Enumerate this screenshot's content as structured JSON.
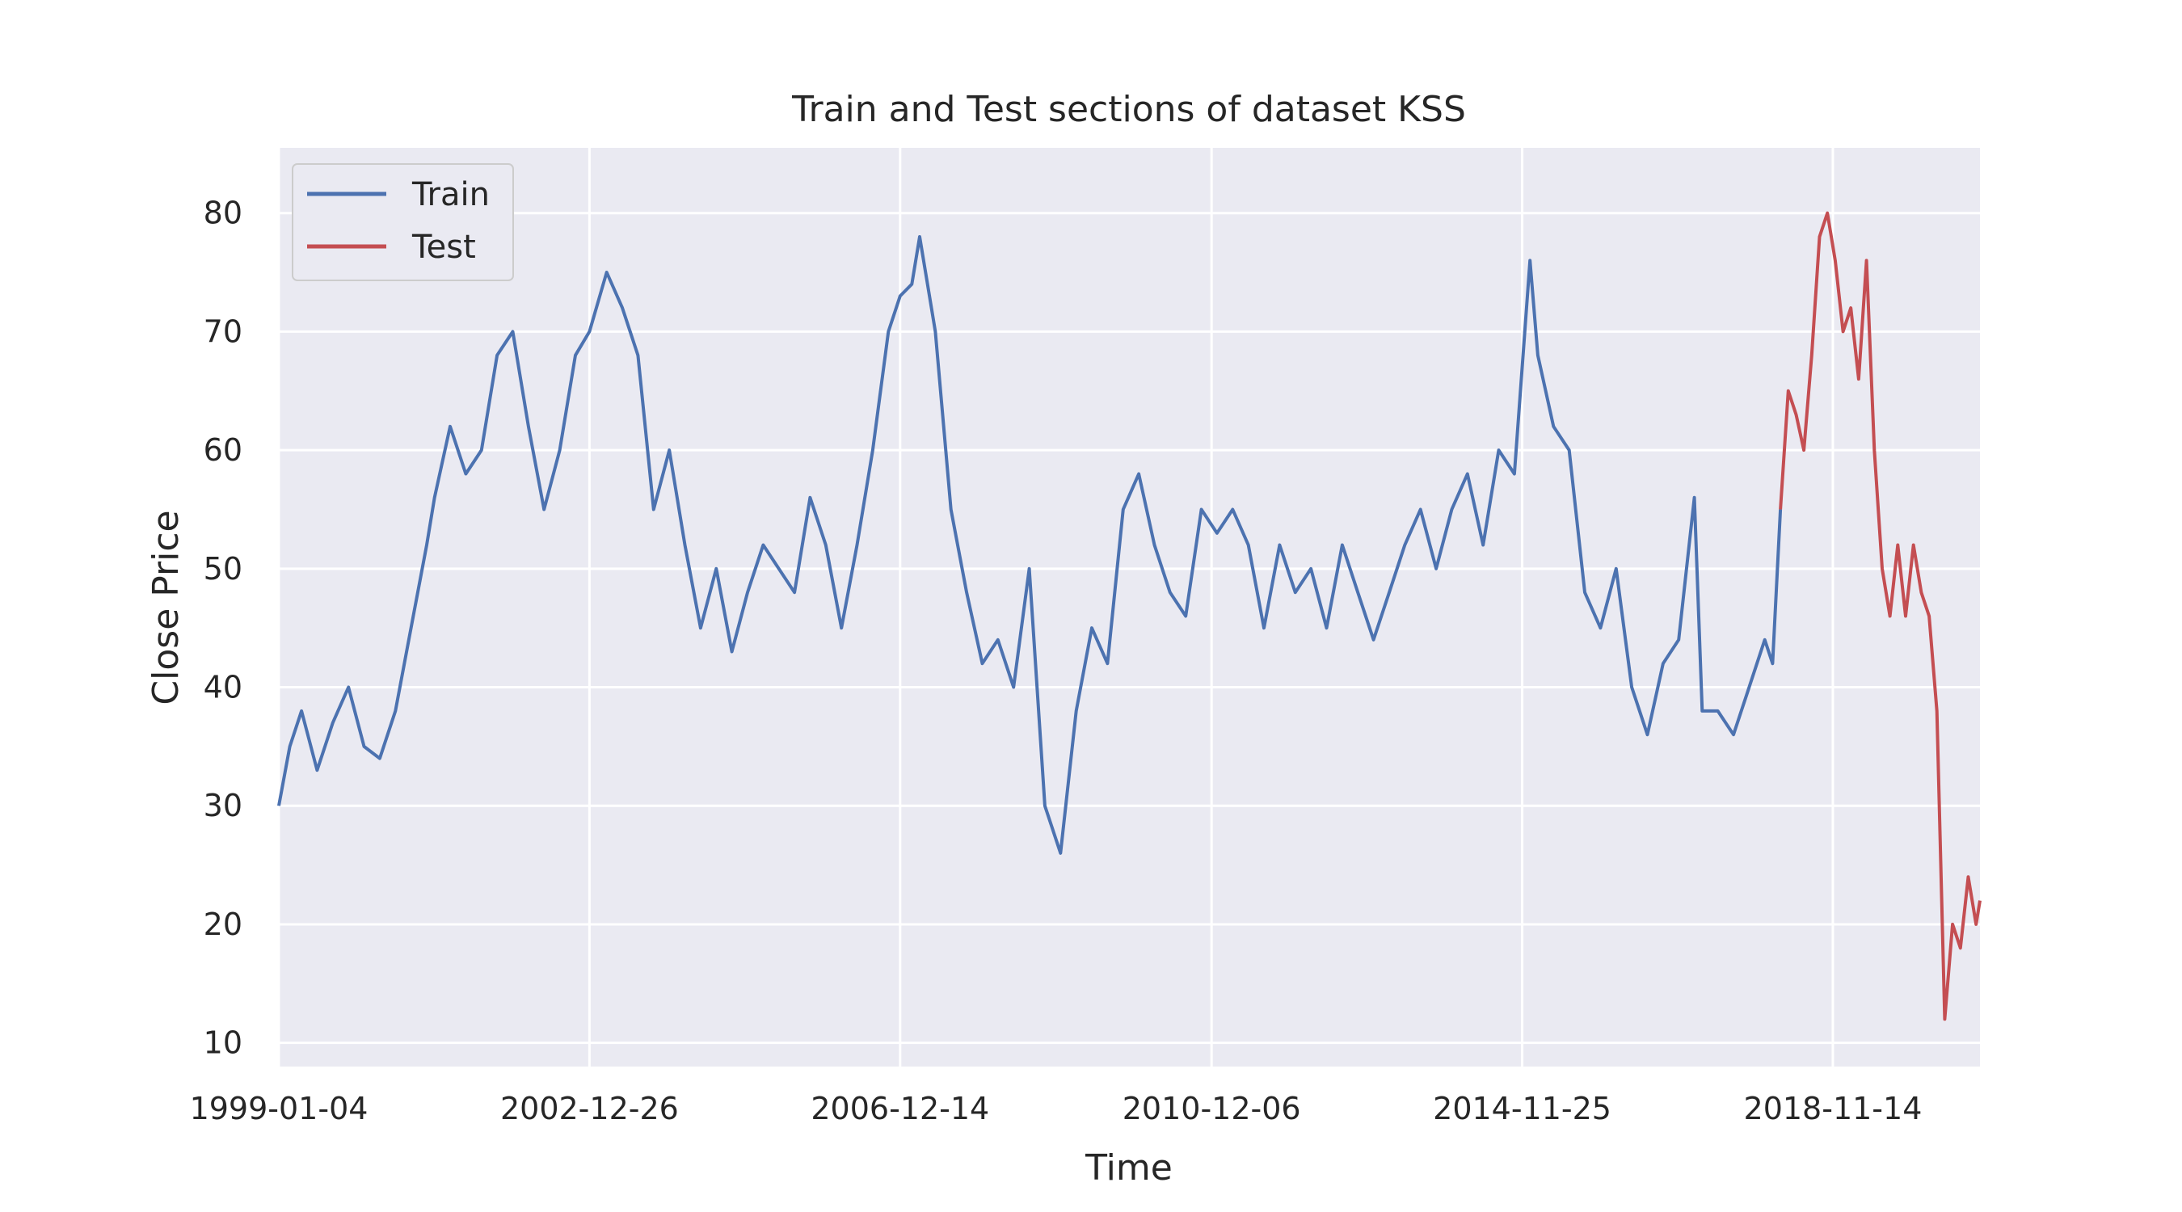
{
  "chart_data": {
    "type": "line",
    "title": "Train and Test sections of dataset KSS",
    "xlabel": "Time",
    "ylabel": "Close Price",
    "x_domain": [
      1999.01,
      2020.75
    ],
    "ylim": [
      8.0,
      85.5
    ],
    "grid": true,
    "legend_position": "top-left",
    "x_ticks": [
      {
        "label": "1999-01-04",
        "x": 1999.01
      },
      {
        "label": "2002-12-26",
        "x": 2002.98
      },
      {
        "label": "2006-12-14",
        "x": 2006.95
      },
      {
        "label": "2010-12-06",
        "x": 2010.93
      },
      {
        "label": "2014-11-25",
        "x": 2014.9
      },
      {
        "label": "2018-11-14",
        "x": 2018.87
      }
    ],
    "y_ticks": [
      {
        "label": "10",
        "y": 10
      },
      {
        "label": "20",
        "y": 20
      },
      {
        "label": "30",
        "y": 30
      },
      {
        "label": "40",
        "y": 40
      },
      {
        "label": "50",
        "y": 50
      },
      {
        "label": "60",
        "y": 60
      },
      {
        "label": "70",
        "y": 70
      },
      {
        "label": "80",
        "y": 80
      }
    ],
    "series": [
      {
        "name": "Train",
        "color": "#4C72B0",
        "x": [
          1999.01,
          1999.15,
          1999.3,
          1999.5,
          1999.7,
          1999.9,
          2000.1,
          2000.3,
          2000.5,
          2000.7,
          2000.9,
          2001.0,
          2001.2,
          2001.4,
          2001.6,
          2001.8,
          2002.0,
          2002.2,
          2002.4,
          2002.6,
          2002.8,
          2002.98,
          2003.2,
          2003.4,
          2003.6,
          2003.8,
          2004.0,
          2004.2,
          2004.4,
          2004.6,
          2004.8,
          2005.0,
          2005.2,
          2005.4,
          2005.6,
          2005.8,
          2006.0,
          2006.2,
          2006.4,
          2006.6,
          2006.8,
          2006.95,
          2007.1,
          2007.2,
          2007.4,
          2007.6,
          2007.8,
          2008.0,
          2008.2,
          2008.4,
          2008.6,
          2008.8,
          2009.0,
          2009.2,
          2009.4,
          2009.6,
          2009.8,
          2010.0,
          2010.2,
          2010.4,
          2010.6,
          2010.8,
          2011.0,
          2011.2,
          2011.4,
          2011.6,
          2011.8,
          2012.0,
          2012.2,
          2012.4,
          2012.6,
          2012.8,
          2013.0,
          2013.2,
          2013.4,
          2013.6,
          2013.8,
          2014.0,
          2014.2,
          2014.4,
          2014.6,
          2014.8,
          2015.0,
          2015.1,
          2015.3,
          2015.5,
          2015.7,
          2015.9,
          2016.1,
          2016.3,
          2016.5,
          2016.7,
          2016.9,
          2017.1,
          2017.2,
          2017.4,
          2017.6,
          2017.8,
          2018.0,
          2018.1,
          2018.2
        ],
        "y": [
          30,
          35,
          38,
          33,
          37,
          40,
          35,
          34,
          38,
          45,
          52,
          56,
          62,
          58,
          60,
          68,
          70,
          62,
          55,
          60,
          68,
          70,
          75,
          72,
          68,
          55,
          60,
          52,
          45,
          50,
          43,
          48,
          52,
          50,
          48,
          56,
          52,
          45,
          52,
          60,
          70,
          73,
          74,
          78,
          70,
          55,
          48,
          42,
          44,
          40,
          50,
          30,
          26,
          38,
          45,
          42,
          55,
          58,
          52,
          48,
          46,
          55,
          53,
          55,
          52,
          45,
          52,
          48,
          50,
          45,
          52,
          48,
          44,
          48,
          52,
          55,
          50,
          55,
          58,
          52,
          60,
          58,
          76,
          68,
          62,
          60,
          48,
          45,
          50,
          40,
          36,
          42,
          44,
          56,
          38,
          38,
          36,
          40,
          44,
          42,
          55
        ]
      },
      {
        "name": "Test",
        "color": "#C44E52",
        "x": [
          2018.2,
          2018.3,
          2018.4,
          2018.5,
          2018.6,
          2018.7,
          2018.8,
          2018.9,
          2019.0,
          2019.1,
          2019.2,
          2019.3,
          2019.4,
          2019.5,
          2019.6,
          2019.7,
          2019.8,
          2019.9,
          2020.0,
          2020.1,
          2020.2,
          2020.3,
          2020.4,
          2020.5,
          2020.6,
          2020.7,
          2020.75
        ],
        "y": [
          55,
          65,
          63,
          60,
          68,
          78,
          80,
          76,
          70,
          72,
          66,
          76,
          60,
          50,
          46,
          52,
          46,
          52,
          48,
          46,
          38,
          12,
          20,
          18,
          24,
          20,
          22
        ]
      }
    ]
  }
}
